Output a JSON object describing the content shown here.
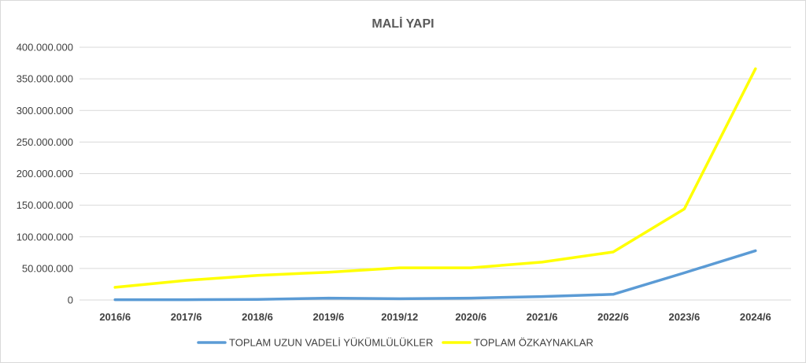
{
  "chart_data": {
    "type": "line",
    "title": "MALİ YAPI",
    "xlabel": "",
    "ylabel": "",
    "categories": [
      "2016/6",
      "2017/6",
      "2018/6",
      "2019/6",
      "2019/12",
      "2020/6",
      "2021/6",
      "2022/6",
      "2023/6",
      "2024/6"
    ],
    "y_ticks": [
      "0",
      "50.000.000",
      "100.000.000",
      "150.000.000",
      "200.000.000",
      "250.000.000",
      "300.000.000",
      "350.000.000",
      "400.000.000"
    ],
    "ylim": [
      0,
      400000000
    ],
    "grid": true,
    "legend_position": "bottom",
    "series": [
      {
        "name": "TOPLAM UZUN VADELİ YÜKÜMLÜLÜKLER",
        "color": "#5b9bd5",
        "values": [
          500000,
          500000,
          1000000,
          3000000,
          2000000,
          3000000,
          5500000,
          9000000,
          43000000,
          78000000
        ]
      },
      {
        "name": "TOPLAM ÖZKAYNAKLAR",
        "color": "#ffff00",
        "values": [
          20000000,
          31000000,
          39000000,
          44000000,
          51000000,
          51000000,
          60000000,
          76000000,
          144000000,
          366000000
        ]
      }
    ]
  }
}
